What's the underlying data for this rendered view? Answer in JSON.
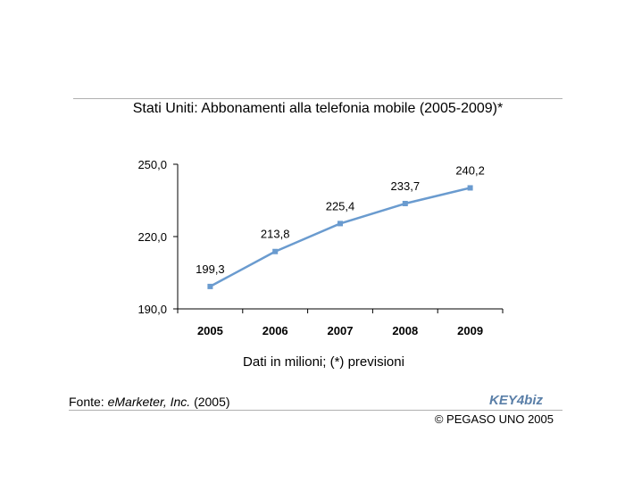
{
  "title": "Stati Uniti: Abbonamenti alla telefonia mobile (2005-2009)*",
  "subtitle": "Dati in milioni; (*) previsioni",
  "source": {
    "prefix": "Fonte: ",
    "name": "eMarketer, Inc.",
    "suffix": " (2005)"
  },
  "copyright": "© PEGASO UNO 2005",
  "logo": {
    "text": "KEY4biz",
    "color": "#5a7fa8"
  },
  "colors": {
    "line": "#6a9bcf",
    "axis": "#000000"
  },
  "chart_data": {
    "type": "line",
    "categories": [
      "2005",
      "2006",
      "2007",
      "2008",
      "2009"
    ],
    "series": [
      {
        "values": [
          199.3,
          213.8,
          225.4,
          233.7,
          240.2
        ],
        "labels": [
          "199,3",
          "213,8",
          "225,4",
          "233,7",
          "240,2"
        ]
      }
    ],
    "ylim": [
      190,
      250
    ],
    "yticks": [
      190,
      220,
      250
    ],
    "ytick_labels": [
      "190,0",
      "220,0",
      "250,0"
    ],
    "grid": false,
    "legend": "none"
  }
}
